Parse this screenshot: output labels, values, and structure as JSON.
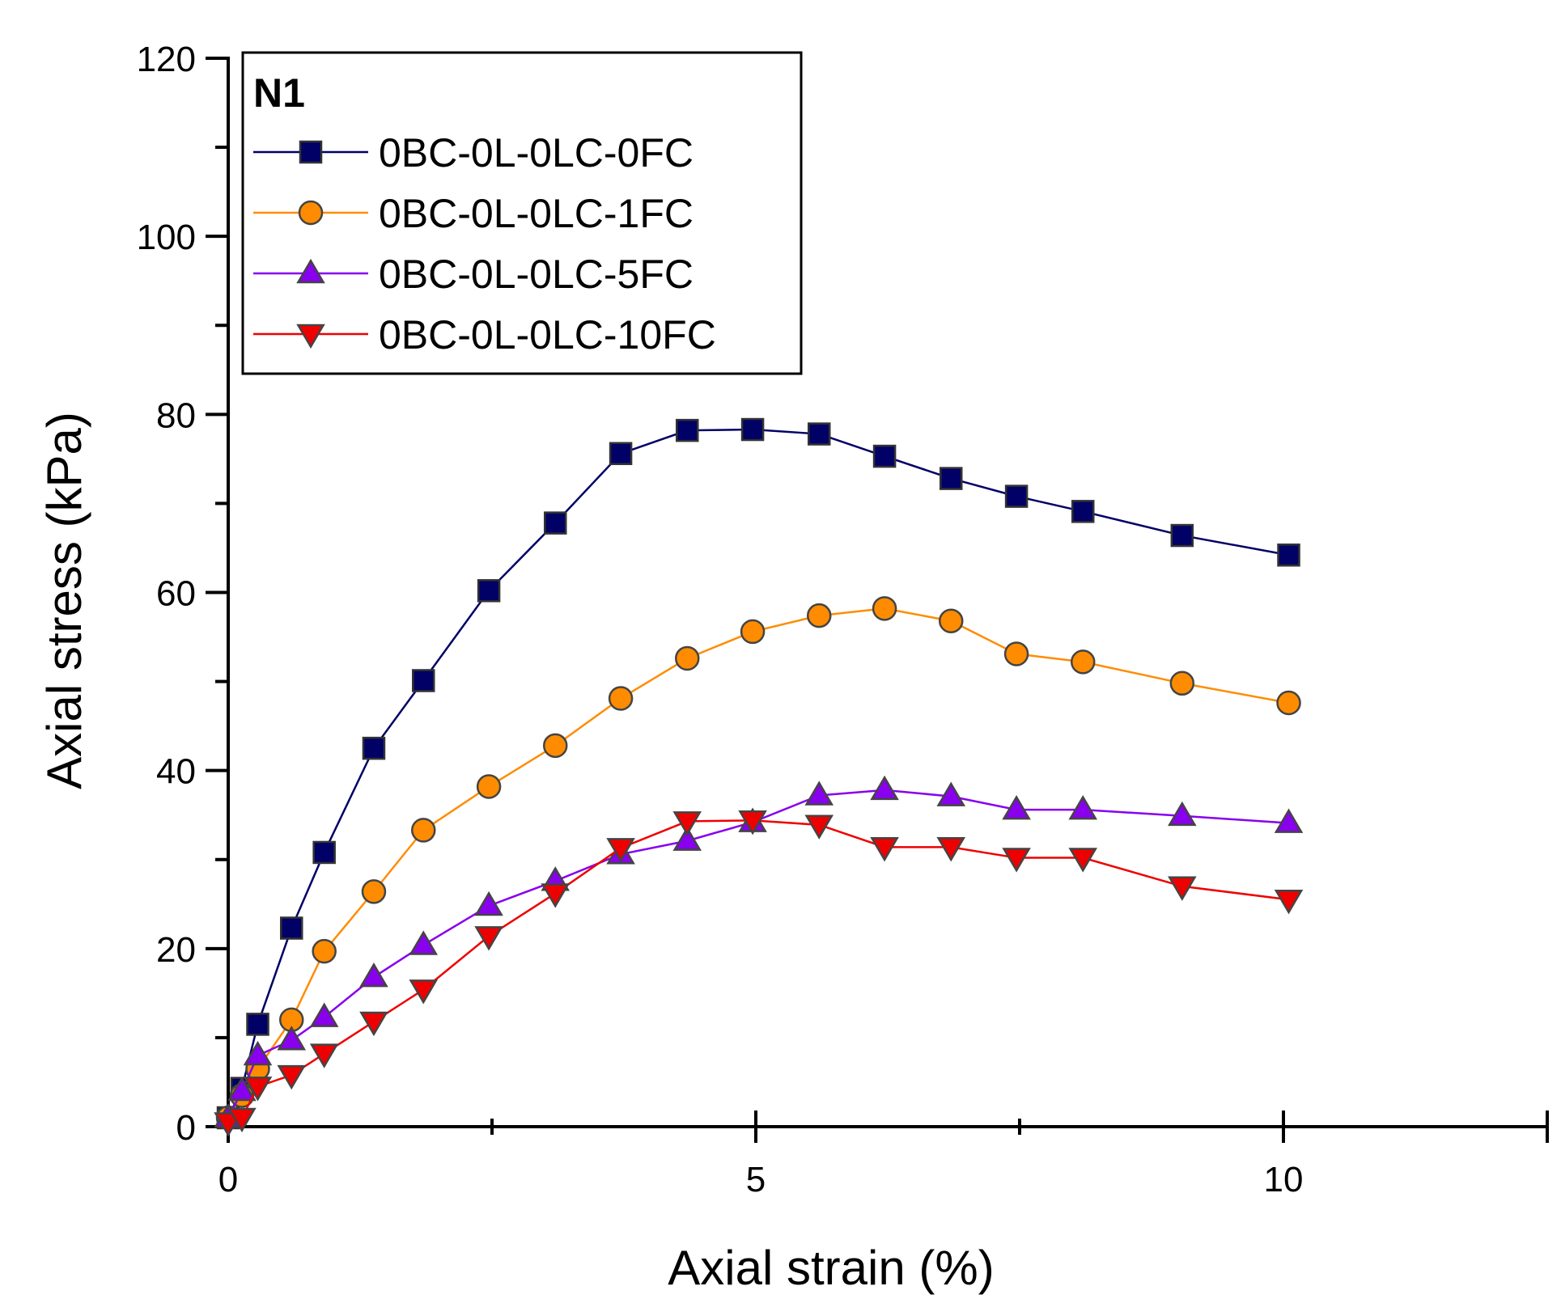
{
  "chart_data": {
    "type": "line",
    "title": "",
    "xlabel": "Axial strain (%)",
    "ylabel": "Axial stress (kPa)",
    "xlim": [
      0,
      12.5
    ],
    "ylim": [
      0,
      120
    ],
    "x_ticks": [
      "0",
      "5",
      "10"
    ],
    "y_ticks": [
      "0",
      "20",
      "40",
      "60",
      "80",
      "100",
      "120"
    ],
    "legend_title": "N1",
    "legend_position": "top-left",
    "grid": false,
    "series": [
      {
        "name": "0BC-0L-0LC-0FC",
        "color": "#000066",
        "marker": "square",
        "x": [
          0,
          0.13,
          0.28,
          0.6,
          0.91,
          1.38,
          1.85,
          2.47,
          3.1,
          3.72,
          4.35,
          4.97,
          5.6,
          6.22,
          6.85,
          7.47,
          8.1,
          9.04,
          10.05
        ],
        "y": [
          1,
          4.3,
          11.5,
          22.3,
          30.8,
          42.5,
          50.1,
          60.2,
          67.8,
          75.6,
          78.2,
          78.3,
          77.8,
          75.3,
          72.8,
          70.8,
          69.1,
          66.4,
          64.2
        ]
      },
      {
        "name": "0BC-0L-0LC-1FC",
        "color": "#FF8C00",
        "marker": "circle",
        "x": [
          0,
          0.13,
          0.28,
          0.6,
          0.91,
          1.38,
          1.85,
          2.47,
          3.1,
          3.72,
          4.35,
          4.97,
          5.6,
          6.22,
          6.85,
          7.47,
          8.1,
          9.04,
          10.05
        ],
        "y": [
          1,
          3.5,
          6.5,
          12,
          19.7,
          26.4,
          33.3,
          38.2,
          42.8,
          48.1,
          52.6,
          55.6,
          57.4,
          58.2,
          56.8,
          53.1,
          52.2,
          49.8,
          47.6
        ]
      },
      {
        "name": "0BC-0L-0LC-5FC",
        "color": "#8800EE",
        "marker": "triangle-up",
        "x": [
          0,
          0.13,
          0.28,
          0.6,
          0.91,
          1.38,
          1.85,
          2.47,
          3.1,
          3.72,
          4.35,
          4.97,
          5.6,
          6.22,
          6.85,
          7.47,
          8.1,
          9.04,
          10.05
        ],
        "y": [
          1,
          4,
          8,
          9.7,
          12.3,
          16.8,
          20.4,
          24.8,
          27.6,
          30.6,
          32.1,
          34.2,
          37.2,
          37.8,
          37.1,
          35.6,
          35.6,
          34.9,
          34.1
        ]
      },
      {
        "name": "0BC-0L-0LC-10FC",
        "color": "#EE0000",
        "marker": "triangle-down",
        "x": [
          0,
          0.13,
          0.28,
          0.6,
          0.91,
          1.38,
          1.85,
          2.47,
          3.1,
          3.72,
          4.35,
          4.97,
          5.6,
          6.22,
          6.85,
          7.47,
          8.1,
          9.04,
          10.05
        ],
        "y": [
          0.5,
          1,
          4.5,
          5.8,
          8.2,
          11.8,
          15.4,
          21.4,
          26.2,
          31.3,
          34.3,
          34.4,
          33.9,
          31.4,
          31.4,
          30.2,
          30.2,
          27,
          25.5
        ]
      }
    ]
  }
}
